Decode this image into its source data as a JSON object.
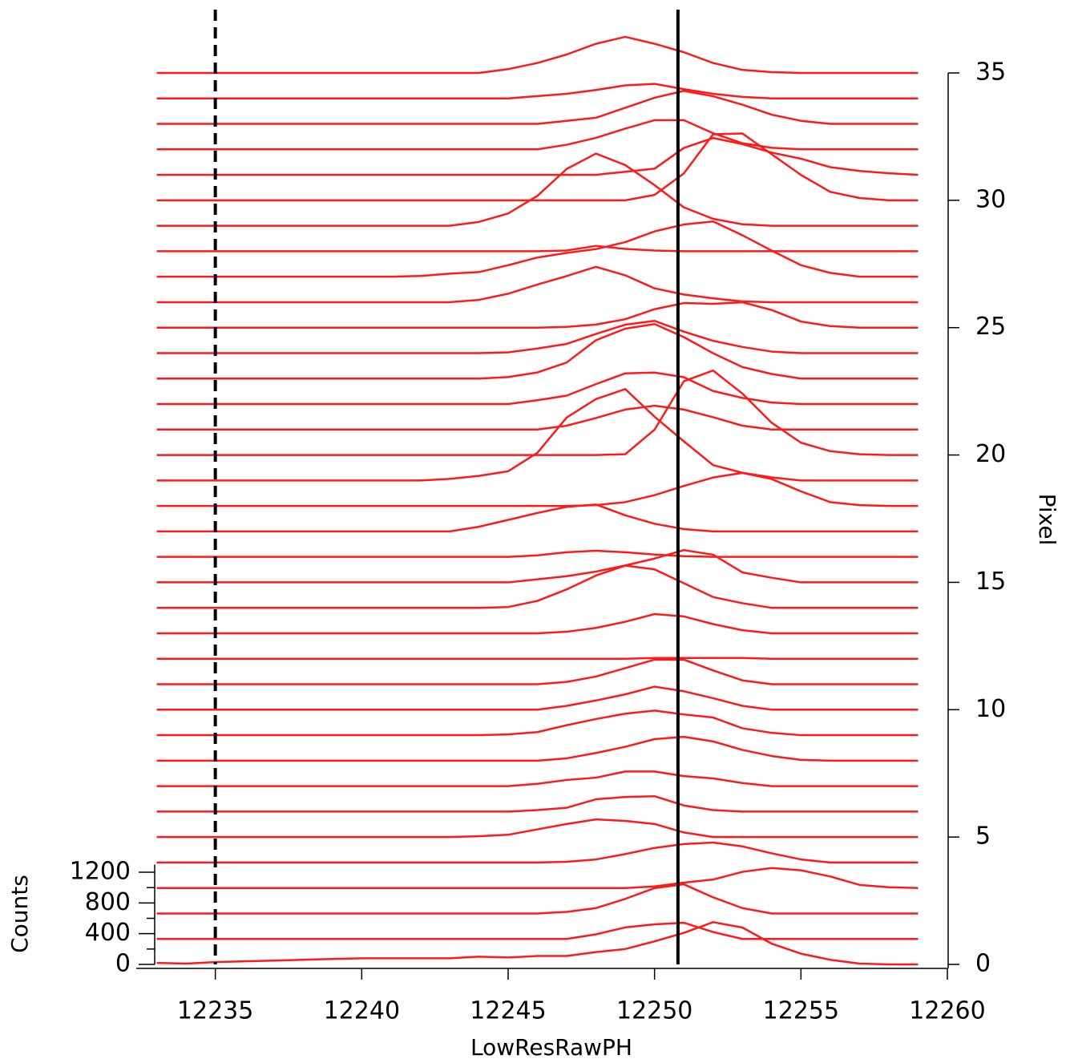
{
  "chart_data": {
    "type": "waterfall",
    "xlabel": "LowResRawPH",
    "ylabel": "Counts",
    "y2label": "Pixel",
    "color": "#ff1a1a",
    "x": [
      12233,
      12234,
      12235,
      12236,
      12237,
      12238,
      12239,
      12240,
      12241,
      12242,
      12243,
      12244,
      12245,
      12246,
      12247,
      12248,
      12249,
      12250,
      12251,
      12252,
      12253,
      12254,
      12255,
      12256,
      12257,
      12258,
      12259
    ],
    "xlim": [
      12232.3,
      12260
    ],
    "xticks": [
      12235,
      12240,
      12245,
      12250,
      12255,
      12260
    ],
    "ylim": [
      0,
      1300
    ],
    "yticks": [
      0,
      400,
      800,
      1200
    ],
    "yminorticks": [
      200,
      600,
      1000
    ],
    "y2lim": [
      0,
      35
    ],
    "y2ticks": [
      0,
      5,
      10,
      15,
      20,
      25,
      30,
      35
    ],
    "vlines": [
      {
        "x": 12235,
        "style": "dashed",
        "color": "#000000"
      },
      {
        "x": 12250.8,
        "style": "solid",
        "color": "#000000"
      }
    ],
    "series": [
      {
        "pixel": 0,
        "values": [
          20,
          10,
          30,
          40,
          50,
          60,
          70,
          80,
          80,
          80,
          80,
          100,
          90,
          110,
          110,
          160,
          200,
          300,
          410,
          550,
          480,
          270,
          140,
          60,
          10,
          0,
          0
        ]
      },
      {
        "pixel": 1,
        "values": [
          0,
          0,
          0,
          0,
          0,
          0,
          0,
          0,
          0,
          0,
          0,
          0,
          0,
          0,
          0,
          60,
          150,
          190,
          210,
          90,
          0,
          0,
          0,
          0,
          0,
          0,
          0
        ]
      },
      {
        "pixel": 2,
        "values": [
          0,
          0,
          0,
          0,
          0,
          0,
          0,
          0,
          0,
          0,
          0,
          0,
          0,
          0,
          20,
          70,
          190,
          330,
          380,
          210,
          70,
          0,
          0,
          0,
          0,
          0,
          0
        ]
      },
      {
        "pixel": 3,
        "values": [
          0,
          0,
          0,
          0,
          0,
          0,
          0,
          0,
          0,
          0,
          0,
          0,
          0,
          0,
          0,
          0,
          0,
          20,
          70,
          110,
          210,
          260,
          230,
          150,
          40,
          10,
          0
        ]
      },
      {
        "pixel": 4,
        "values": [
          0,
          0,
          0,
          0,
          0,
          0,
          0,
          0,
          0,
          0,
          0,
          0,
          0,
          0,
          10,
          40,
          110,
          190,
          240,
          260,
          210,
          120,
          40,
          0,
          0,
          0,
          0
        ]
      },
      {
        "pixel": 5,
        "values": [
          0,
          0,
          0,
          0,
          0,
          0,
          0,
          0,
          0,
          0,
          0,
          10,
          30,
          100,
          170,
          230,
          210,
          170,
          60,
          0,
          0,
          0,
          0,
          0,
          0,
          0,
          0
        ]
      },
      {
        "pixel": 6,
        "values": [
          0,
          0,
          0,
          0,
          0,
          0,
          0,
          0,
          0,
          0,
          0,
          0,
          0,
          20,
          50,
          160,
          190,
          200,
          80,
          20,
          0,
          0,
          0,
          0,
          0,
          0,
          0
        ]
      },
      {
        "pixel": 7,
        "values": [
          0,
          0,
          0,
          0,
          0,
          0,
          0,
          0,
          0,
          0,
          0,
          0,
          0,
          30,
          80,
          110,
          190,
          190,
          130,
          100,
          40,
          0,
          0,
          0,
          0,
          0,
          0
        ]
      },
      {
        "pixel": 8,
        "values": [
          0,
          0,
          0,
          0,
          0,
          0,
          0,
          0,
          0,
          0,
          0,
          0,
          0,
          0,
          30,
          100,
          180,
          280,
          310,
          250,
          140,
          60,
          10,
          0,
          0,
          0,
          0
        ]
      },
      {
        "pixel": 9,
        "values": [
          0,
          0,
          0,
          0,
          0,
          0,
          0,
          0,
          0,
          0,
          0,
          0,
          10,
          40,
          130,
          210,
          280,
          320,
          270,
          230,
          90,
          30,
          0,
          0,
          0,
          0,
          0
        ]
      },
      {
        "pixel": 10,
        "values": [
          0,
          0,
          0,
          0,
          0,
          0,
          0,
          0,
          0,
          0,
          0,
          0,
          0,
          0,
          50,
          120,
          200,
          300,
          240,
          150,
          50,
          0,
          0,
          0,
          0,
          0,
          0
        ]
      },
      {
        "pixel": 11,
        "values": [
          0,
          0,
          0,
          0,
          0,
          0,
          0,
          0,
          0,
          0,
          0,
          0,
          0,
          0,
          30,
          100,
          210,
          320,
          320,
          180,
          50,
          0,
          0,
          0,
          0,
          0,
          0
        ]
      },
      {
        "pixel": 12,
        "values": [
          0,
          0,
          0,
          0,
          0,
          0,
          0,
          0,
          0,
          0,
          0,
          0,
          0,
          0,
          0,
          0,
          0,
          10,
          10,
          10,
          10,
          0,
          0,
          0,
          0,
          0,
          0
        ]
      },
      {
        "pixel": 13,
        "values": [
          0,
          0,
          0,
          0,
          0,
          0,
          0,
          0,
          0,
          0,
          0,
          0,
          0,
          0,
          20,
          70,
          150,
          250,
          220,
          120,
          40,
          0,
          0,
          0,
          0,
          0,
          0
        ]
      },
      {
        "pixel": 14,
        "values": [
          0,
          0,
          0,
          0,
          0,
          0,
          0,
          0,
          0,
          0,
          0,
          0,
          10,
          90,
          240,
          420,
          550,
          500,
          320,
          140,
          60,
          0,
          0,
          0,
          0,
          0,
          0
        ]
      },
      {
        "pixel": 15,
        "values": [
          0,
          0,
          0,
          0,
          0,
          0,
          0,
          0,
          0,
          0,
          0,
          0,
          0,
          40,
          80,
          140,
          220,
          310,
          420,
          360,
          130,
          60,
          0,
          0,
          0,
          0,
          0
        ]
      },
      {
        "pixel": 16,
        "values": [
          0,
          0,
          0,
          0,
          0,
          0,
          0,
          0,
          0,
          0,
          0,
          0,
          0,
          20,
          60,
          80,
          60,
          30,
          10,
          0,
          0,
          0,
          0,
          0,
          0,
          0,
          0
        ]
      },
      {
        "pixel": 17,
        "values": [
          0,
          0,
          0,
          0,
          0,
          0,
          0,
          0,
          0,
          0,
          0,
          60,
          150,
          240,
          320,
          350,
          210,
          100,
          30,
          0,
          0,
          0,
          0,
          0,
          0,
          0,
          0
        ]
      },
      {
        "pixel": 18,
        "values": [
          0,
          0,
          0,
          0,
          0,
          0,
          0,
          0,
          0,
          0,
          0,
          0,
          0,
          0,
          0,
          10,
          50,
          140,
          260,
          370,
          430,
          350,
          190,
          50,
          10,
          0,
          0
        ]
      },
      {
        "pixel": 19,
        "values": [
          0,
          0,
          0,
          0,
          0,
          0,
          0,
          0,
          0,
          0,
          20,
          60,
          120,
          360,
          820,
          1060,
          1190,
          830,
          510,
          200,
          100,
          40,
          0,
          0,
          0,
          0,
          0
        ]
      },
      {
        "pixel": 20,
        "values": [
          0,
          0,
          0,
          0,
          0,
          0,
          0,
          0,
          0,
          0,
          0,
          0,
          0,
          0,
          0,
          0,
          10,
          330,
          960,
          1100,
          800,
          420,
          160,
          50,
          10,
          0,
          0
        ]
      },
      {
        "pixel": 21,
        "values": [
          0,
          0,
          0,
          0,
          0,
          0,
          0,
          0,
          0,
          0,
          0,
          0,
          0,
          0,
          50,
          150,
          260,
          310,
          260,
          160,
          50,
          0,
          0,
          0,
          0,
          0,
          0
        ]
      },
      {
        "pixel": 22,
        "values": [
          0,
          0,
          0,
          0,
          0,
          0,
          0,
          0,
          0,
          0,
          0,
          0,
          0,
          50,
          110,
          260,
          400,
          410,
          350,
          170,
          80,
          20,
          0,
          0,
          0,
          0,
          0
        ]
      },
      {
        "pixel": 23,
        "values": [
          0,
          0,
          0,
          0,
          0,
          0,
          0,
          0,
          0,
          0,
          0,
          0,
          20,
          80,
          210,
          500,
          650,
          710,
          540,
          330,
          150,
          60,
          0,
          0,
          0,
          0,
          0
        ]
      },
      {
        "pixel": 24,
        "values": [
          0,
          0,
          0,
          0,
          0,
          0,
          0,
          0,
          0,
          0,
          0,
          0,
          10,
          60,
          120,
          250,
          370,
          420,
          280,
          160,
          80,
          20,
          0,
          0,
          0,
          0,
          0
        ]
      },
      {
        "pixel": 25,
        "values": [
          0,
          0,
          0,
          0,
          0,
          0,
          0,
          0,
          0,
          0,
          0,
          0,
          0,
          0,
          10,
          40,
          110,
          240,
          320,
          310,
          330,
          230,
          80,
          20,
          0,
          0,
          0
        ]
      },
      {
        "pixel": 26,
        "values": [
          0,
          0,
          0,
          0,
          0,
          0,
          0,
          0,
          0,
          0,
          0,
          30,
          110,
          230,
          340,
          460,
          350,
          180,
          100,
          50,
          10,
          0,
          0,
          0,
          0,
          0,
          0
        ]
      },
      {
        "pixel": 27,
        "values": [
          0,
          0,
          0,
          0,
          0,
          0,
          0,
          0,
          0,
          10,
          40,
          60,
          150,
          250,
          310,
          360,
          450,
          590,
          680,
          720,
          540,
          340,
          150,
          50,
          0,
          0,
          0
        ]
      },
      {
        "pixel": 28,
        "values": [
          0,
          0,
          0,
          0,
          0,
          0,
          0,
          0,
          0,
          0,
          0,
          0,
          0,
          0,
          10,
          70,
          30,
          10,
          0,
          0,
          0,
          0,
          0,
          0,
          0,
          0,
          0
        ]
      },
      {
        "pixel": 29,
        "values": [
          0,
          0,
          0,
          0,
          0,
          0,
          0,
          0,
          0,
          0,
          0,
          50,
          160,
          390,
          740,
          940,
          790,
          530,
          240,
          90,
          20,
          0,
          0,
          0,
          0,
          0,
          0
        ]
      },
      {
        "pixel": 30,
        "values": [
          0,
          0,
          0,
          0,
          0,
          0,
          0,
          0,
          0,
          0,
          0,
          0,
          0,
          0,
          0,
          0,
          0,
          70,
          350,
          860,
          870,
          600,
          330,
          110,
          30,
          0,
          0
        ]
      },
      {
        "pixel": 31,
        "values": [
          0,
          0,
          0,
          0,
          0,
          0,
          0,
          0,
          0,
          0,
          0,
          0,
          0,
          0,
          0,
          0,
          40,
          80,
          350,
          480,
          400,
          290,
          210,
          100,
          50,
          20,
          0
        ]
      },
      {
        "pixel": 32,
        "values": [
          0,
          0,
          0,
          0,
          0,
          0,
          0,
          0,
          0,
          0,
          0,
          0,
          0,
          0,
          60,
          150,
          270,
          380,
          380,
          210,
          80,
          20,
          0,
          0,
          0,
          0,
          0
        ]
      },
      {
        "pixel": 33,
        "values": [
          0,
          0,
          0,
          0,
          0,
          0,
          0,
          0,
          0,
          0,
          0,
          0,
          0,
          0,
          40,
          80,
          210,
          340,
          430,
          360,
          250,
          120,
          40,
          0,
          0,
          0,
          0
        ]
      },
      {
        "pixel": 34,
        "values": [
          0,
          0,
          0,
          0,
          0,
          0,
          0,
          0,
          0,
          0,
          0,
          0,
          0,
          30,
          60,
          110,
          170,
          190,
          120,
          60,
          20,
          0,
          0,
          0,
          0,
          0,
          0
        ]
      },
      {
        "pixel": 35,
        "values": [
          0,
          0,
          0,
          0,
          0,
          0,
          0,
          0,
          0,
          0,
          0,
          0,
          50,
          130,
          240,
          380,
          470,
          380,
          270,
          130,
          40,
          10,
          0,
          0,
          0,
          0,
          0
        ]
      }
    ]
  }
}
